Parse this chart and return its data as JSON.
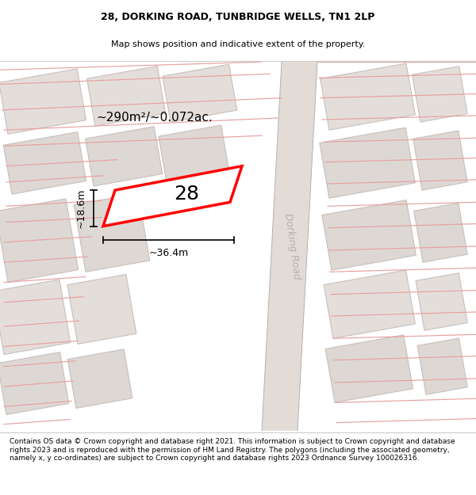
{
  "title_line1": "28, DORKING ROAD, TUNBRIDGE WELLS, TN1 2LP",
  "title_line2": "Map shows position and indicative extent of the property.",
  "footer_text": "Contains OS data © Crown copyright and database right 2021. This information is subject to Crown copyright and database rights 2023 and is reproduced with the permission of HM Land Registry. The polygons (including the associated geometry, namely x, y co-ordinates) are subject to Crown copyright and database rights 2023 Ordnance Survey 100026316.",
  "area_label": "~290m²/~0.072ac.",
  "number_label": "28",
  "width_label": "~36.4m",
  "height_label": "~18.6m",
  "road_label": "Dorking Road",
  "bg_color": "#f2ede9",
  "road_fill": "#e2dbd6",
  "parcel_fill": "#ddd8d4",
  "parcel_stroke": "#c8bfbb",
  "highlight_fill": "#ffffff",
  "highlight_stroke": "#ff0000",
  "pink_line_color": "#e8a0a0",
  "road_label_color": "#b8b0ac",
  "dim_color": "#000000",
  "title_fontsize": 9,
  "subtitle_fontsize": 8,
  "footer_fontsize": 6.5,
  "area_fontsize": 11,
  "number_fontsize": 18,
  "road_fontsize": 9,
  "dim_fontsize": 9
}
